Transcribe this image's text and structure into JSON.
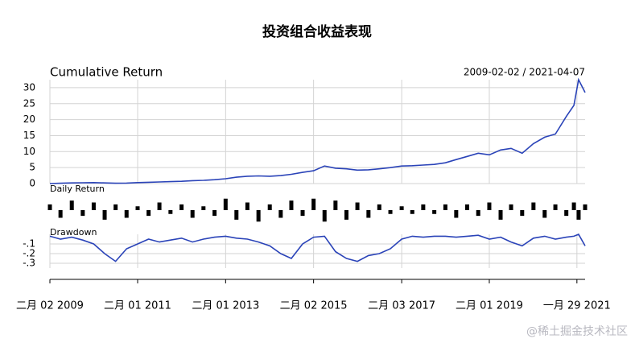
{
  "title": "投资组合收益表现",
  "watermark": "@稀土掘金技术社区",
  "chart_data": [
    {
      "type": "line",
      "title": "Cumulative Return",
      "date_range": "2009-02-02 / 2021-04-07",
      "color": "#2a43b8",
      "grid": true,
      "xlim": [
        "2009-02-02",
        "2021-04-07"
      ],
      "ylim": [
        0,
        32.5
      ],
      "yticks": [
        0,
        5,
        10,
        15,
        20,
        25,
        30
      ],
      "x": [
        "2009-02-02",
        "2009-05-01",
        "2009-08-03",
        "2009-11-02",
        "2010-02-01",
        "2010-05-03",
        "2010-08-02",
        "2010-11-01",
        "2011-02-01",
        "2011-05-03",
        "2011-08-01",
        "2011-11-01",
        "2012-02-01",
        "2012-05-02",
        "2012-08-01",
        "2012-11-01",
        "2013-02-01",
        "2013-05-02",
        "2013-08-01",
        "2013-11-01",
        "2014-02-03",
        "2014-05-05",
        "2014-08-01",
        "2014-11-03",
        "2015-02-02",
        "2015-05-04",
        "2015-08-03",
        "2015-11-02",
        "2016-02-01",
        "2016-05-03",
        "2016-08-01",
        "2016-11-01",
        "2017-02-03",
        "2017-05-02",
        "2017-08-01",
        "2017-11-01",
        "2018-02-01",
        "2018-05-02",
        "2018-08-01",
        "2018-11-01",
        "2019-02-01",
        "2019-05-06",
        "2019-08-01",
        "2019-11-01",
        "2020-02-03",
        "2020-05-06",
        "2020-08-03",
        "2020-11-02",
        "2021-01-04",
        "2021-02-12",
        "2021-04-07"
      ],
      "values": [
        0,
        0.1,
        0.2,
        0.25,
        0.3,
        0.2,
        0.1,
        0.15,
        0.3,
        0.4,
        0.5,
        0.6,
        0.7,
        0.9,
        1.0,
        1.2,
        1.5,
        2.0,
        2.3,
        2.4,
        2.3,
        2.5,
        2.9,
        3.5,
        4.0,
        5.5,
        4.8,
        4.6,
        4.2,
        4.3,
        4.6,
        5.0,
        5.5,
        5.6,
        5.8,
        6.0,
        6.5,
        7.5,
        8.5,
        9.5,
        9.0,
        10.5,
        11.0,
        9.5,
        12.5,
        14.5,
        15.5,
        21,
        24.5,
        32.5,
        28.5
      ]
    },
    {
      "type": "bar",
      "title": "Daily Return",
      "color": "#000000",
      "xlim": [
        "2009-02-02",
        "2021-04-07"
      ],
      "ylim": [
        -0.08,
        0.08
      ],
      "x": [
        "2009-02-02",
        "2009-05-01",
        "2009-08-03",
        "2009-11-02",
        "2010-02-01",
        "2010-05-03",
        "2010-08-02",
        "2010-11-01",
        "2011-02-01",
        "2011-05-03",
        "2011-08-01",
        "2011-11-01",
        "2012-02-01",
        "2012-05-02",
        "2012-08-01",
        "2012-11-01",
        "2013-02-01",
        "2013-05-02",
        "2013-08-01",
        "2013-11-01",
        "2014-02-03",
        "2014-05-05",
        "2014-08-01",
        "2014-11-03",
        "2015-02-02",
        "2015-05-04",
        "2015-08-03",
        "2015-11-02",
        "2016-02-01",
        "2016-05-03",
        "2016-08-01",
        "2016-11-01",
        "2017-02-03",
        "2017-05-02",
        "2017-08-01",
        "2017-11-01",
        "2018-02-01",
        "2018-05-02",
        "2018-08-01",
        "2018-11-01",
        "2019-02-01",
        "2019-05-06",
        "2019-08-01",
        "2019-11-01",
        "2020-02-03",
        "2020-05-06",
        "2020-08-03",
        "2020-11-02",
        "2021-01-04",
        "2021-02-12",
        "2021-04-07"
      ],
      "values": [
        0.03,
        -0.04,
        0.05,
        -0.03,
        0.04,
        -0.05,
        0.03,
        -0.04,
        0.02,
        -0.03,
        0.04,
        -0.02,
        0.03,
        -0.04,
        0.02,
        -0.03,
        0.06,
        -0.05,
        0.04,
        -0.06,
        0.03,
        -0.04,
        0.05,
        -0.03,
        0.06,
        -0.06,
        0.05,
        -0.05,
        0.04,
        -0.04,
        0.03,
        -0.02,
        0.02,
        -0.02,
        0.03,
        -0.02,
        0.03,
        -0.04,
        0.03,
        -0.03,
        0.04,
        -0.05,
        0.03,
        -0.03,
        0.04,
        -0.04,
        0.03,
        -0.03,
        0.04,
        -0.05,
        0.03
      ]
    },
    {
      "type": "line",
      "title": "Drawdown",
      "color": "#2a43b8",
      "grid": true,
      "xlim": [
        "2009-02-02",
        "2021-04-07"
      ],
      "ylim": [
        -0.35,
        0
      ],
      "yticks": [
        {
          "value": -0.1,
          "label": "-.1"
        },
        {
          "value": -0.2,
          "label": "-.2"
        },
        {
          "value": -0.3,
          "label": "-.3"
        }
      ],
      "xticks": [
        {
          "value": "2009-02-02",
          "label": "二月 02 2009"
        },
        {
          "value": "2011-02-01",
          "label": "二月 01 2011"
        },
        {
          "value": "2013-02-01",
          "label": "二月 01 2013"
        },
        {
          "value": "2015-02-02",
          "label": "二月 02 2015"
        },
        {
          "value": "2017-02-03",
          "label": "二月 03 2017"
        },
        {
          "value": "2019-02-01",
          "label": "二月 01 2019"
        },
        {
          "value": "2021-01-29",
          "label": "一月 29 2021"
        }
      ],
      "x": [
        "2009-02-02",
        "2009-05-01",
        "2009-08-03",
        "2009-11-02",
        "2010-02-01",
        "2010-05-03",
        "2010-08-02",
        "2010-11-01",
        "2011-02-01",
        "2011-05-03",
        "2011-08-01",
        "2011-11-01",
        "2012-02-01",
        "2012-05-02",
        "2012-08-01",
        "2012-11-01",
        "2013-02-01",
        "2013-05-02",
        "2013-08-01",
        "2013-11-01",
        "2014-02-03",
        "2014-05-05",
        "2014-08-01",
        "2014-11-03",
        "2015-02-02",
        "2015-05-04",
        "2015-08-03",
        "2015-11-02",
        "2016-02-01",
        "2016-05-03",
        "2016-08-01",
        "2016-11-01",
        "2017-02-03",
        "2017-05-02",
        "2017-08-01",
        "2017-11-01",
        "2018-02-01",
        "2018-05-02",
        "2018-08-01",
        "2018-11-01",
        "2019-02-01",
        "2019-05-06",
        "2019-08-01",
        "2019-11-01",
        "2020-02-03",
        "2020-05-06",
        "2020-08-03",
        "2020-11-02",
        "2021-01-04",
        "2021-02-12",
        "2021-04-07"
      ],
      "values": [
        -0.02,
        -0.05,
        -0.03,
        -0.06,
        -0.1,
        -0.2,
        -0.28,
        -0.15,
        -0.1,
        -0.05,
        -0.08,
        -0.06,
        -0.04,
        -0.08,
        -0.05,
        -0.03,
        -0.02,
        -0.04,
        -0.05,
        -0.08,
        -0.12,
        -0.2,
        -0.25,
        -0.1,
        -0.03,
        -0.02,
        -0.18,
        -0.25,
        -0.28,
        -0.22,
        -0.2,
        -0.15,
        -0.05,
        -0.02,
        -0.03,
        -0.02,
        -0.02,
        -0.03,
        -0.02,
        -0.01,
        -0.05,
        -0.03,
        -0.08,
        -0.12,
        -0.04,
        -0.02,
        -0.05,
        -0.03,
        -0.02,
        0,
        -0.12
      ]
    }
  ]
}
